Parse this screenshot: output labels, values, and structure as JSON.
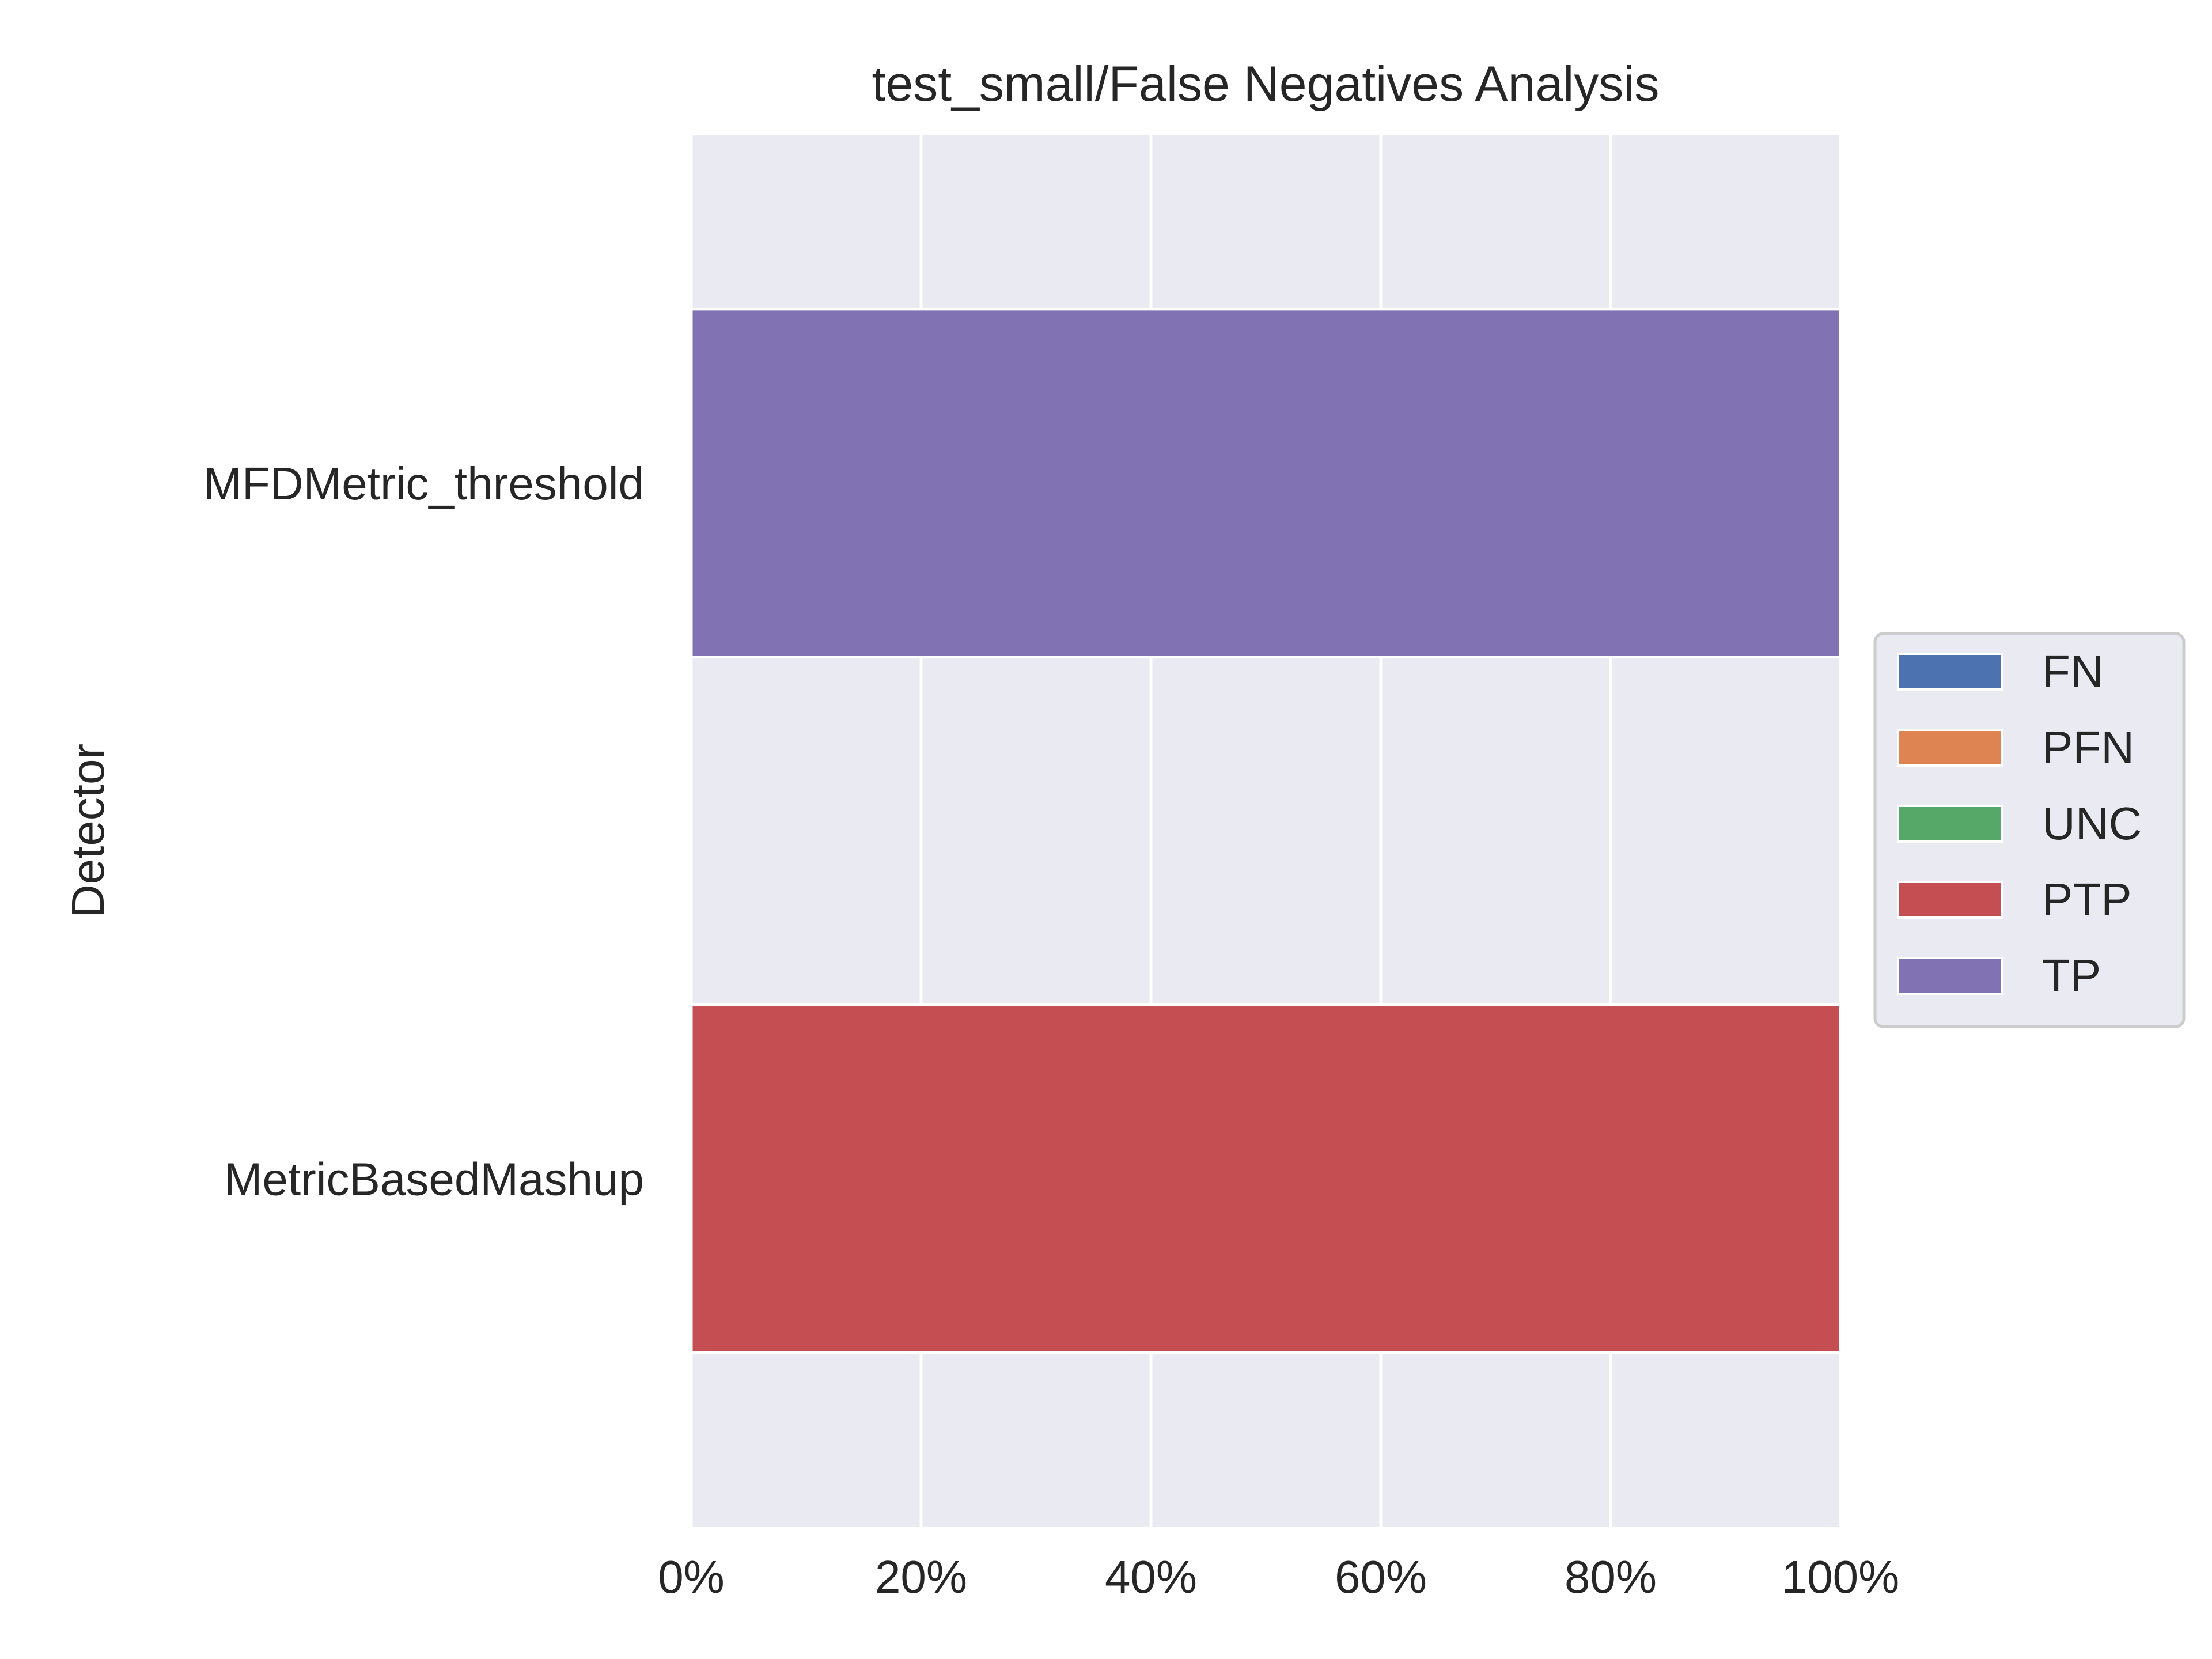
{
  "chart_data": {
    "type": "bar",
    "orientation": "horizontal",
    "stacked": true,
    "title": "test_small/False Negatives Analysis",
    "ylabel": "Detector",
    "xlabel": "",
    "categories": [
      "MFDMetric_threshold",
      "MetricBasedMashup"
    ],
    "series": [
      {
        "name": "FN",
        "color": "#4c72b0",
        "values": [
          0,
          0
        ]
      },
      {
        "name": "PFN",
        "color": "#dd8452",
        "values": [
          0,
          0
        ]
      },
      {
        "name": "UNC",
        "color": "#55a868",
        "values": [
          0,
          0
        ]
      },
      {
        "name": "PTP",
        "color": "#c44e52",
        "values": [
          0,
          100
        ]
      },
      {
        "name": "TP",
        "color": "#8172b3",
        "values": [
          100,
          0
        ]
      }
    ],
    "xlim": [
      0,
      100
    ],
    "xticks": [
      "0%",
      "20%",
      "40%",
      "60%",
      "80%",
      "100%"
    ],
    "grid": true,
    "legend_position": "center-right",
    "plot_background": "#eaeaf2"
  }
}
